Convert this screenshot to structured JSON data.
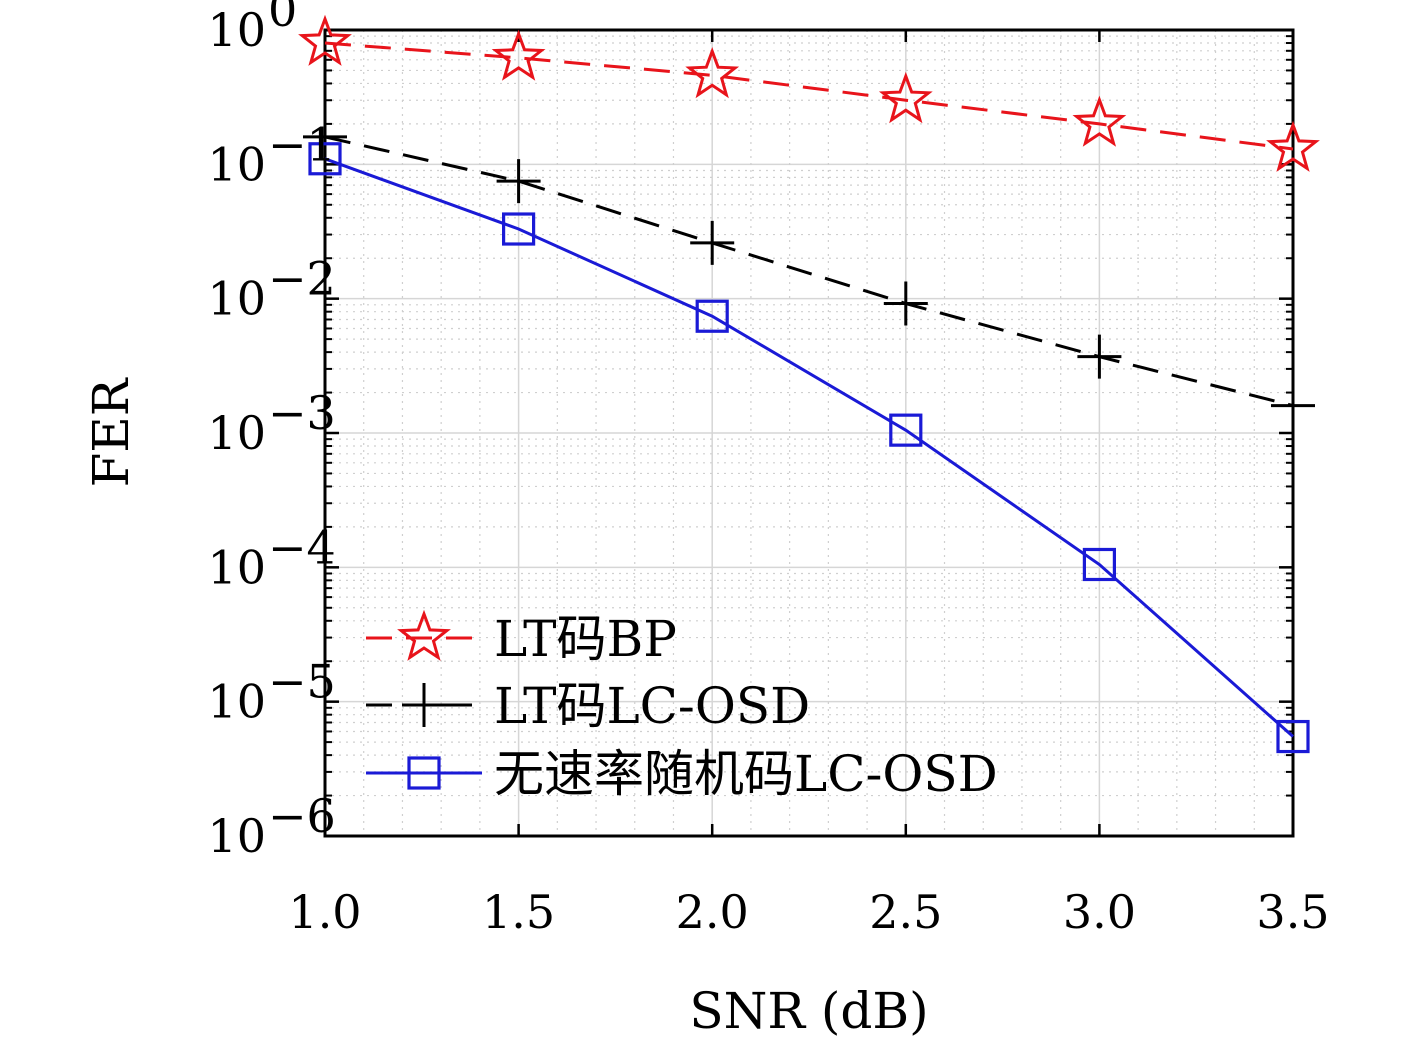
{
  "chart_data": {
    "type": "line",
    "xlabel": "SNR (dB)",
    "ylabel": "FER",
    "x": [
      1.0,
      1.5,
      2.0,
      2.5,
      3.0,
      3.5
    ],
    "x_ticks": [
      "1.0",
      "1.5",
      "2.0",
      "2.5",
      "3.0",
      "3.5"
    ],
    "xlim": [
      1.0,
      3.5
    ],
    "y_scale": "log",
    "ylim": [
      1e-06,
      1
    ],
    "y_ticks": [
      {
        "base": "10",
        "exp": "0",
        "value": 1
      },
      {
        "base": "10",
        "exp": "−1",
        "value": 0.1
      },
      {
        "base": "10",
        "exp": "−2",
        "value": 0.01
      },
      {
        "base": "10",
        "exp": "−3",
        "value": 0.001
      },
      {
        "base": "10",
        "exp": "−4",
        "value": 0.0001
      },
      {
        "base": "10",
        "exp": "−5",
        "value": 1e-05
      },
      {
        "base": "10",
        "exp": "−6",
        "value": 1e-06
      }
    ],
    "grid": true,
    "legend_position": "bottom-left",
    "series": [
      {
        "name": "LT码BP",
        "color": "#e8141b",
        "line": "dashed",
        "marker": "star",
        "values": [
          0.8,
          0.62,
          0.46,
          0.3,
          0.2,
          0.13
        ]
      },
      {
        "name": "LT码LC-OSD",
        "color": "#000000",
        "line": "dashed",
        "marker": "plus",
        "values": [
          0.16,
          0.075,
          0.026,
          0.0092,
          0.0037,
          0.0016
        ]
      },
      {
        "name": "无速率随机码LC-OSD",
        "color": "#1a1ad6",
        "line": "solid",
        "marker": "square",
        "values": [
          0.11,
          0.033,
          0.0074,
          0.00105,
          0.000105,
          5.5e-06
        ]
      }
    ]
  }
}
